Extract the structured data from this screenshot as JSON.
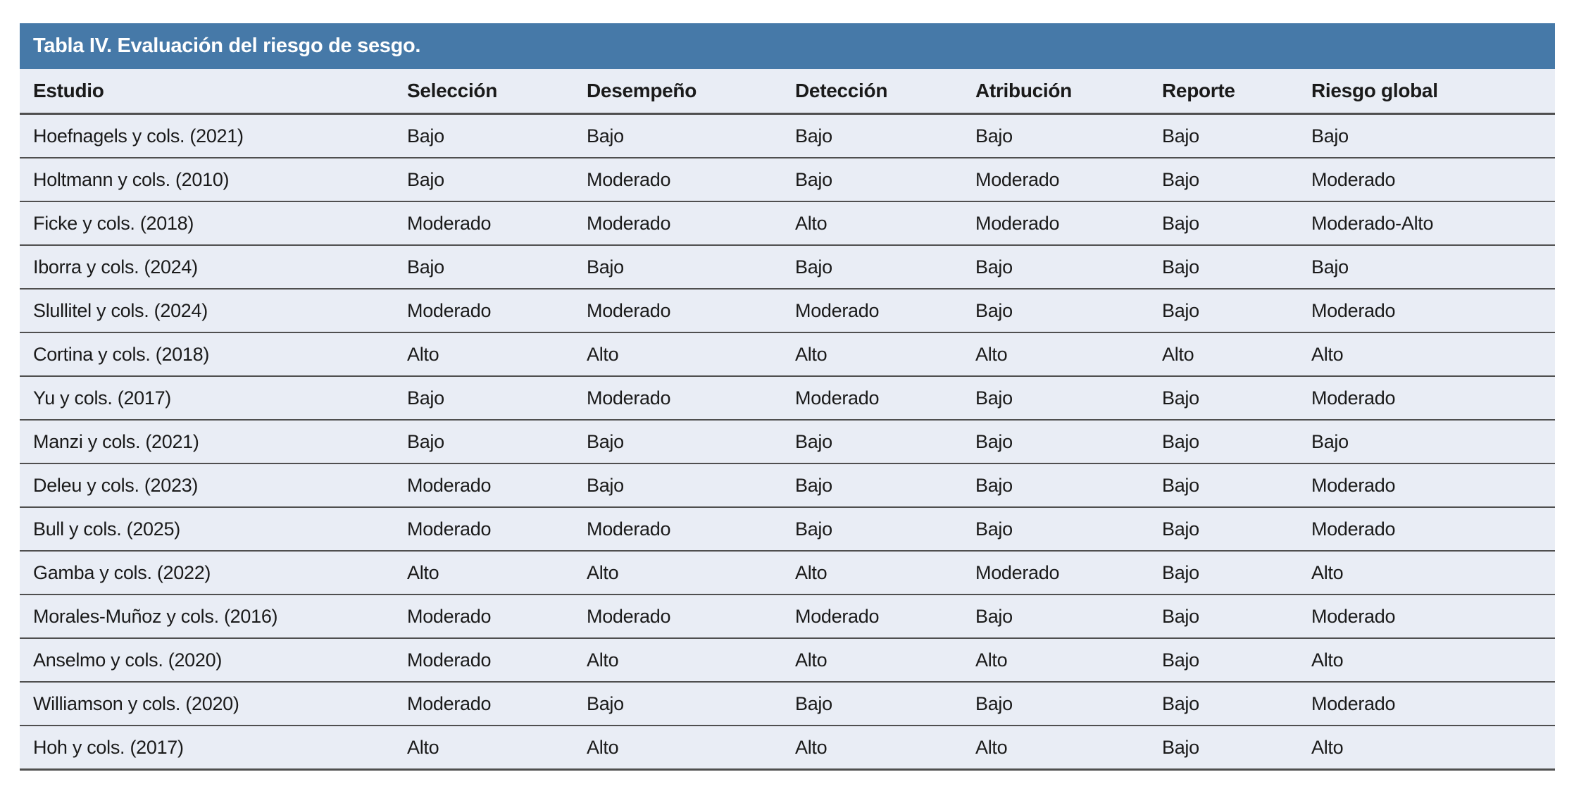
{
  "page": {
    "background": "#FFFFFF"
  },
  "table": {
    "title": "Tabla IV. Evaluación del riesgo de sesgo.",
    "columns": [
      "Estudio",
      "Selección",
      "Desempeño",
      "Detección",
      "Atribución",
      "Reporte",
      "Riesgo global"
    ],
    "rows": [
      {
        "estudio": "Hoefnagels y cols. (2021)",
        "values": [
          "Bajo",
          "Bajo",
          "Bajo",
          "Bajo",
          "Bajo",
          "Bajo"
        ]
      },
      {
        "estudio": "Holtmann y cols. (2010)",
        "values": [
          "Bajo",
          "Moderado",
          "Bajo",
          "Moderado",
          "Bajo",
          "Moderado"
        ]
      },
      {
        "estudio": "Ficke y cols. (2018)",
        "values": [
          "Moderado",
          "Moderado",
          "Alto",
          "Moderado",
          "Bajo",
          "Moderado-Alto"
        ]
      },
      {
        "estudio": "Iborra y cols. (2024)",
        "values": [
          "Bajo",
          "Bajo",
          "Bajo",
          "Bajo",
          "Bajo",
          "Bajo"
        ]
      },
      {
        "estudio": "Slullitel y cols. (2024)",
        "values": [
          "Moderado",
          "Moderado",
          "Moderado",
          "Bajo",
          "Bajo",
          "Moderado"
        ]
      },
      {
        "estudio": "Cortina y cols. (2018)",
        "values": [
          "Alto",
          "Alto",
          "Alto",
          "Alto",
          "Alto",
          "Alto"
        ]
      },
      {
        "estudio": "Yu y cols. (2017)",
        "values": [
          "Bajo",
          "Moderado",
          "Moderado",
          "Bajo",
          "Bajo",
          "Moderado"
        ]
      },
      {
        "estudio": "Manzi y cols. (2021)",
        "values": [
          "Bajo",
          "Bajo",
          "Bajo",
          "Bajo",
          "Bajo",
          "Bajo"
        ]
      },
      {
        "estudio": "Deleu y cols. (2023)",
        "values": [
          "Moderado",
          "Bajo",
          "Bajo",
          "Bajo",
          "Bajo",
          "Moderado"
        ]
      },
      {
        "estudio": "Bull y cols. (2025)",
        "values": [
          "Moderado",
          "Moderado",
          "Bajo",
          "Bajo",
          "Bajo",
          "Moderado"
        ]
      },
      {
        "estudio": "Gamba y cols. (2022)",
        "values": [
          "Alto",
          "Alto",
          "Alto",
          "Moderado",
          "Bajo",
          "Alto"
        ]
      },
      {
        "estudio": "Morales-Muñoz y cols. (2016)",
        "values": [
          "Moderado",
          "Moderado",
          "Moderado",
          "Bajo",
          "Bajo",
          "Moderado"
        ]
      },
      {
        "estudio": "Anselmo y cols. (2020)",
        "values": [
          "Moderado",
          "Alto",
          "Alto",
          "Alto",
          "Bajo",
          "Alto"
        ]
      },
      {
        "estudio": "Williamson y cols. (2020)",
        "values": [
          "Moderado",
          "Bajo",
          "Bajo",
          "Bajo",
          "Bajo",
          "Moderado"
        ]
      },
      {
        "estudio": "Hoh y cols. (2017)",
        "values": [
          "Alto",
          "Alto",
          "Alto",
          "Alto",
          "Bajo",
          "Alto"
        ]
      }
    ],
    "colors": {
      "title_bar_bg": "#4679A8",
      "title_text": "#FFFFFF",
      "row_bg": "#E9EDF5",
      "separator": "#4F4F4F",
      "body_text": "#1A1A1A"
    }
  }
}
